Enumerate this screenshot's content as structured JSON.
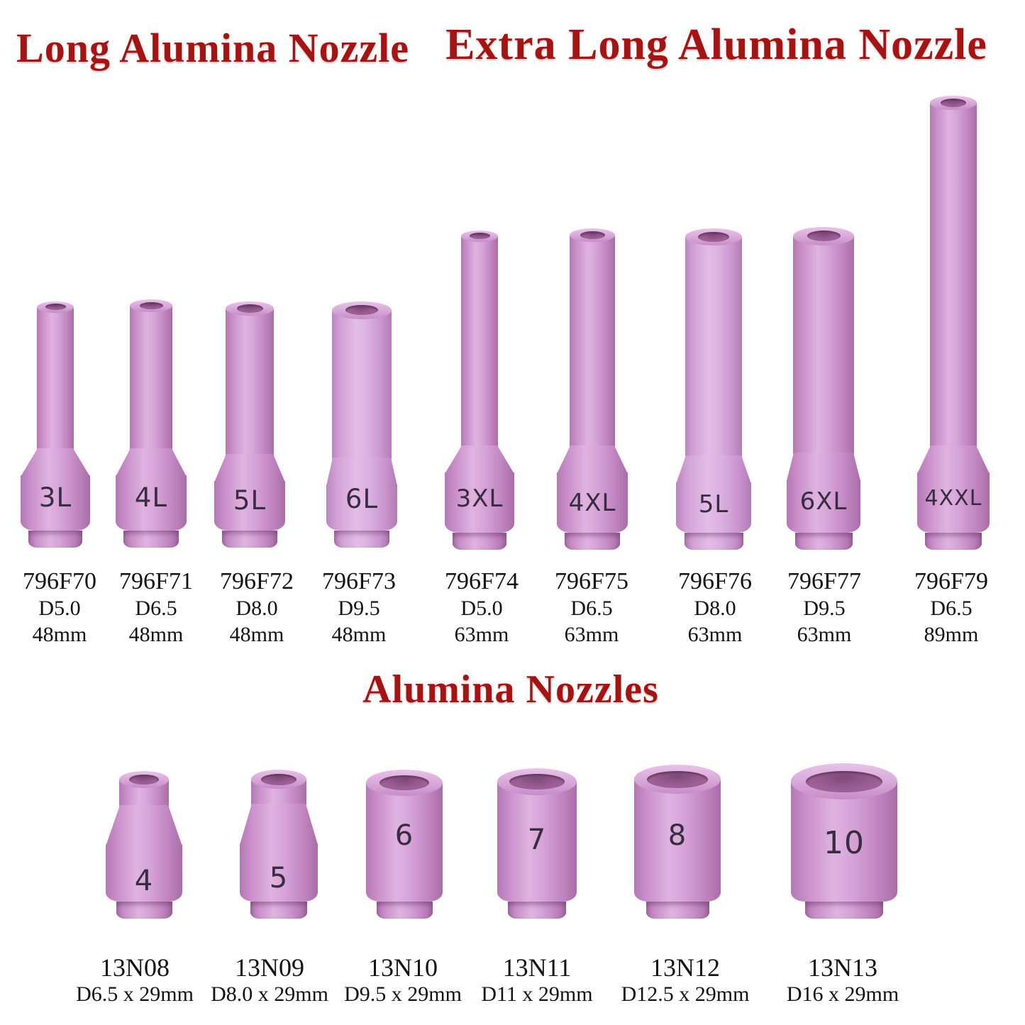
{
  "page": {
    "background": "#ffffff"
  },
  "colors": {
    "title_red": "#a61313",
    "ceramic_main": "#cc93cc",
    "ceramic_highlight": "#e0b4e1",
    "ceramic_shadow": "#a86ba5",
    "bore_dark": "#8d558a",
    "marking_ink": "#372c41",
    "spec_ink": "#121212"
  },
  "sections": [
    {
      "title": "Long Alumina Nozzle",
      "items": [
        {
          "marking": "3L",
          "part": "796F70",
          "diameter": "D5.0",
          "length": "48mm"
        },
        {
          "marking": "4L",
          "part": "796F71",
          "diameter": "D6.5",
          "length": "48mm"
        },
        {
          "marking": "5L",
          "part": "796F72",
          "diameter": "D8.0",
          "length": "48mm"
        },
        {
          "marking": "6L",
          "part": "796F73",
          "diameter": "D9.5",
          "length": "48mm"
        }
      ]
    },
    {
      "title": "Extra Long Alumina Nozzle",
      "items": [
        {
          "marking": "3XL",
          "part": "796F74",
          "diameter": "D5.0",
          "length": "63mm"
        },
        {
          "marking": "4XL",
          "part": "796F75",
          "diameter": "D6.5",
          "length": "63mm"
        },
        {
          "marking": "5L",
          "part": "796F76",
          "diameter": "D8.0",
          "length": "63mm"
        },
        {
          "marking": "6XL",
          "part": "796F77",
          "diameter": "D9.5",
          "length": "63mm"
        },
        {
          "marking": "4XXL",
          "part": "796F79",
          "diameter": "D6.5",
          "length": "89mm"
        }
      ]
    },
    {
      "title": "Alumina Nozzles",
      "items": [
        {
          "marking": "4",
          "part": "13N08",
          "size": "D6.5 x 29mm"
        },
        {
          "marking": "5",
          "part": "13N09",
          "size": "D8.0 x 29mm"
        },
        {
          "marking": "6",
          "part": "13N10",
          "size": "D9.5 x 29mm"
        },
        {
          "marking": "7",
          "part": "13N11",
          "size": "D11 x 29mm"
        },
        {
          "marking": "8",
          "part": "13N12",
          "size": "D12.5 x 29mm"
        },
        {
          "marking": "10",
          "part": "13N13",
          "size": "D16 x 29mm"
        }
      ]
    }
  ]
}
